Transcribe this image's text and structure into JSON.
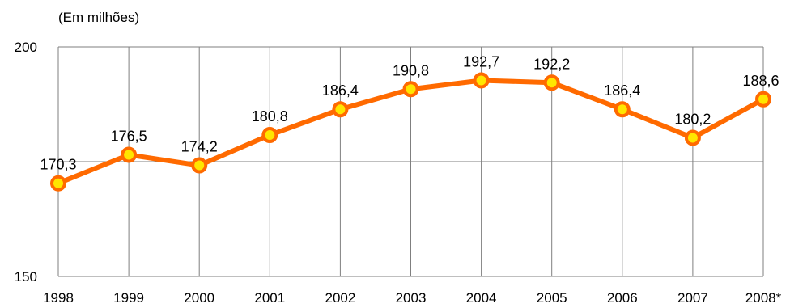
{
  "chart_data": {
    "type": "line",
    "unit_label": "(Em milhões)",
    "categories": [
      "1998",
      "1999",
      "2000",
      "2001",
      "2002",
      "2003",
      "2004",
      "2005",
      "2006",
      "2007",
      "2008*"
    ],
    "series": [
      {
        "values": [
          170.3,
          176.5,
          174.2,
          180.8,
          186.4,
          190.8,
          192.7,
          192.2,
          186.4,
          180.2,
          188.6
        ]
      }
    ],
    "data_labels": [
      "170,3",
      "176,5",
      "174,2",
      "180,8",
      "186,4",
      "190,8",
      "192,7",
      "192,2",
      "186,4",
      "180,2",
      "188,6"
    ],
    "ylim": [
      150,
      200
    ],
    "y_ticks": [
      {
        "value": 150,
        "label": "150"
      },
      {
        "value": 200,
        "label": "200"
      }
    ],
    "y_gridlines": [
      150,
      175,
      200
    ],
    "grid": true,
    "colors": {
      "line": "#FF6A00",
      "marker_fill": "#FFE600",
      "marker_stroke": "#FF6A00",
      "grid": "#7f7f7f"
    }
  }
}
